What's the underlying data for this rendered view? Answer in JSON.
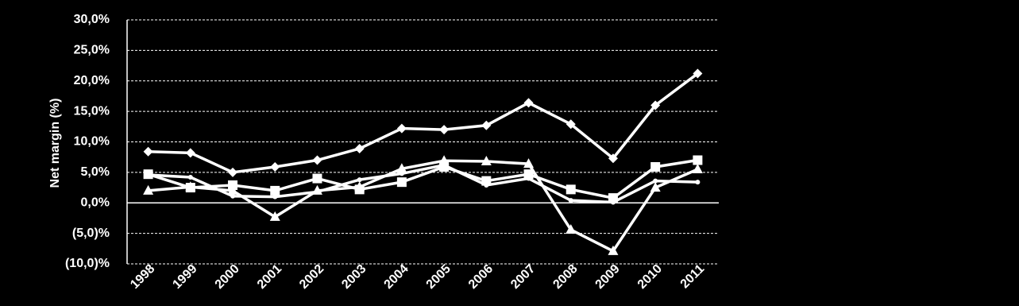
{
  "chart_data": {
    "type": "line",
    "y_label": "Net margin (%)",
    "categories": [
      "1998",
      "1999",
      "2000",
      "2001",
      "2002",
      "2003",
      "2004",
      "2005",
      "2006",
      "2007",
      "2008",
      "2009",
      "2010",
      "2011"
    ],
    "series": [
      {
        "color": "#ffffff",
        "marker": "diamond",
        "values": [
          8.4,
          8.2,
          5.0,
          5.9,
          7.0,
          8.9,
          12.2,
          12.0,
          12.7,
          16.4,
          12.9,
          7.3,
          16.0,
          21.2
        ]
      },
      {
        "color": "#ffffff",
        "marker": "square",
        "values": [
          4.7,
          2.5,
          2.9,
          2.0,
          4.0,
          2.2,
          3.4,
          5.9,
          3.6,
          4.7,
          2.2,
          0.8,
          5.9,
          7.0
        ]
      },
      {
        "color": "#ffffff",
        "marker": "triangle",
        "values": [
          2.0,
          2.6,
          2.0,
          -2.3,
          2.0,
          2.6,
          5.6,
          6.9,
          6.8,
          6.4,
          -4.4,
          -7.9,
          2.5,
          5.5
        ]
      },
      {
        "color": "#ffffff",
        "marker": "circle",
        "values": [
          4.6,
          4.2,
          1.1,
          1.0,
          1.8,
          3.8,
          4.8,
          6.2,
          2.9,
          4.0,
          0.4,
          0.1,
          3.6,
          3.4
        ]
      }
    ],
    "ylim": [
      -10,
      30
    ],
    "yticks": [
      {
        "value": -10,
        "label": "(10,0)%"
      },
      {
        "value": -5,
        "label": "(5,0)%"
      },
      {
        "value": 0,
        "label": "0,0%"
      },
      {
        "value": 5,
        "label": "5,0%"
      },
      {
        "value": 10,
        "label": "10,0%"
      },
      {
        "value": 15,
        "label": "15,0%"
      },
      {
        "value": 20,
        "label": "20,0%"
      },
      {
        "value": 25,
        "label": "25,0%"
      },
      {
        "value": 30,
        "label": "30,0%"
      }
    ],
    "grid": true
  }
}
